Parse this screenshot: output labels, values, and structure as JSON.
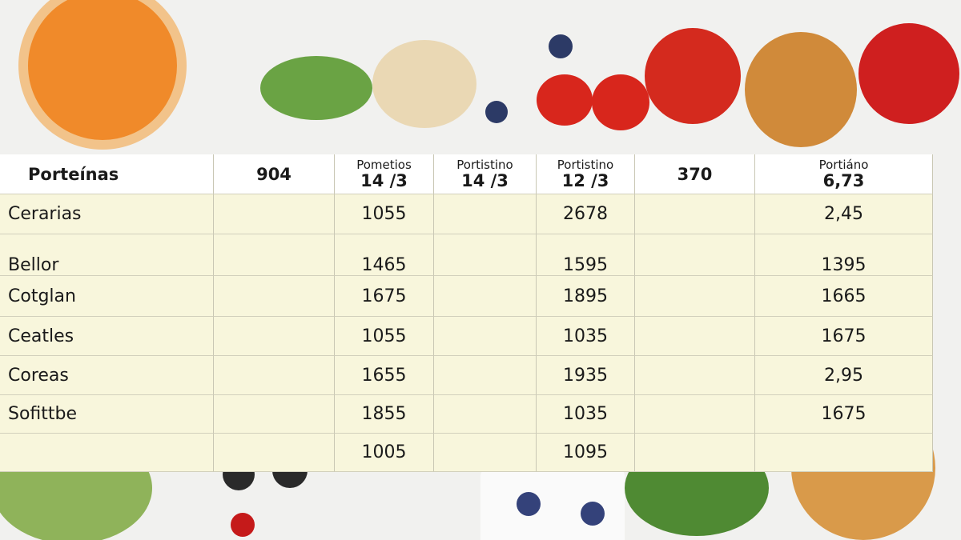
{
  "table": {
    "header": [
      {
        "main": "Porteínas"
      },
      {
        "main": "904"
      },
      {
        "top": "Pometios",
        "main": "14 /3"
      },
      {
        "top": "Portistino",
        "main": "14 /3"
      },
      {
        "top": "Portistino",
        "main": "12 /3"
      },
      {
        "main": "370"
      },
      {
        "top": "Portiáno",
        "main": "6,73"
      }
    ],
    "rows": [
      {
        "label": "Cerarias",
        "values": [
          "1055",
          "2678",
          "2,45"
        ]
      },
      {
        "label": "Bellor",
        "values": [
          "1465",
          "1595",
          "1395"
        ]
      },
      {
        "label": "Cotglan",
        "values": [
          "1675",
          "1895",
          "1665"
        ]
      },
      {
        "label": "Ceatles",
        "values": [
          "1055",
          "1035",
          "1675"
        ]
      },
      {
        "label": "Coreas",
        "values": [
          "1655",
          "1935",
          "2,95"
        ]
      },
      {
        "label": "Sofittbe",
        "values": [
          "1855",
          "1035",
          "1675"
        ]
      },
      {
        "label": null,
        "values": [
          "1005",
          "1095"
        ]
      }
    ]
  }
}
